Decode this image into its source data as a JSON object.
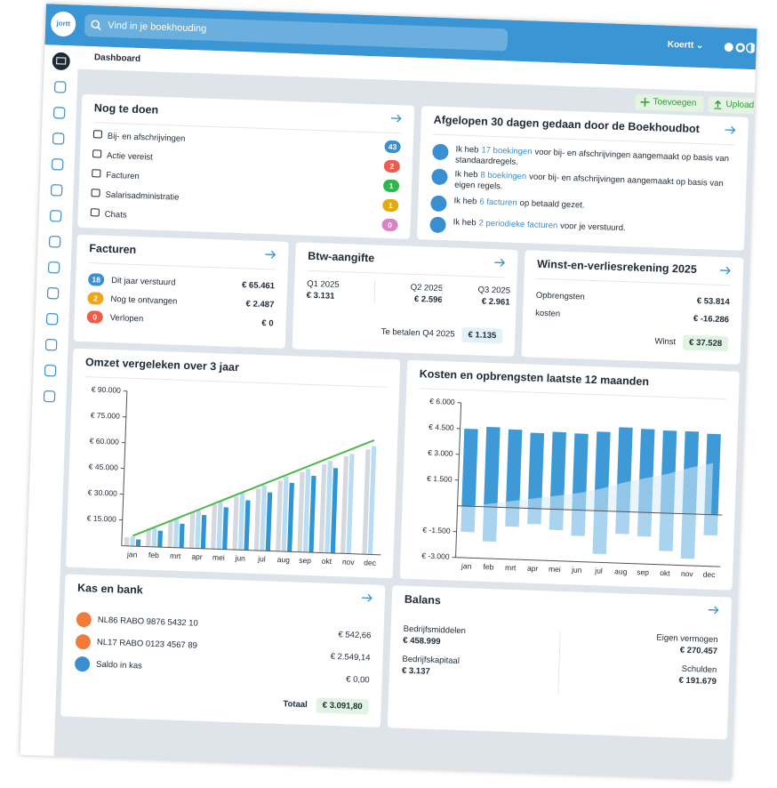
{
  "app": {
    "logo": "jortt",
    "search": "Vind in je boekhouding",
    "user": "Koertt",
    "breadcrumb": "Dashboard",
    "actions": [
      "Toevoegen",
      "Uploaden"
    ]
  },
  "todo": {
    "title": "Nog te doen",
    "items": [
      {
        "label": "Bij- en afschrijvingen",
        "count": 43,
        "color": "#3a8fd0"
      },
      {
        "label": "Actie vereist",
        "count": 2,
        "color": "#ef5b4c"
      },
      {
        "label": "Facturen",
        "count": 1,
        "color": "#2db84b"
      },
      {
        "label": "Salarisadministratie",
        "count": 1,
        "color": "#e2a910"
      },
      {
        "label": "Chats",
        "count": 0,
        "color": "#d883c8"
      }
    ]
  },
  "bot": {
    "title": "Afgelopen 30 dagen gedaan door de Boekhoudbot",
    "items": [
      {
        "before": "Ik heb",
        "link": "17 boekingen",
        "after": "voor bij- en afschrijvingen aangemaakt op basis van standaardregels."
      },
      {
        "before": "Ik heb",
        "link": "8 boekingen",
        "after": "voor bij- en afschrijvingen aangemaakt op basis van eigen regels."
      },
      {
        "before": "Ik heb",
        "link": "6 facturen",
        "after": "op betaald gezet."
      },
      {
        "before": "Ik heb",
        "link": "2 periodieke facturen",
        "after": "voor je verstuurd."
      }
    ]
  },
  "invoices": {
    "title": "Facturen",
    "rows": [
      {
        "count": 18,
        "label": "Dit jaar verstuurd",
        "amount": "€ 65.461",
        "color": "#3a8fd0"
      },
      {
        "count": 2,
        "label": "Nog te ontvangen",
        "amount": "€ 2.487",
        "color": "#f2a516"
      },
      {
        "count": 0,
        "label": "Verlopen",
        "amount": "€ 0",
        "color": "#ef5b4c"
      }
    ]
  },
  "btw": {
    "title": "Btw-aangifte",
    "quarters": [
      {
        "label": "Q1 2025",
        "amount": "€ 3.131"
      },
      {
        "label": "Q2 2025",
        "amount": "€ 2.596"
      },
      {
        "label": "Q3 2025",
        "amount": "€ 2.961"
      }
    ],
    "due_label": "Te betalen Q4 2025",
    "due": "€ 1.135"
  },
  "pnl": {
    "title": "Winst-en-verliesrekening 2025",
    "rows": [
      {
        "label": "Opbrengsten",
        "amount": "€ 53.814"
      },
      {
        "label": "kosten",
        "amount": "€ -16.286"
      }
    ],
    "result_label": "Winst",
    "result": "€ 37.528"
  },
  "chart_data": [
    {
      "type": "bar",
      "barmode": "group",
      "title": "Omzet vergeleken over 3 jaar",
      "categories": [
        "jan",
        "feb",
        "mrt",
        "apr",
        "mei",
        "jun",
        "jul",
        "aug",
        "sep",
        "okt",
        "nov",
        "dec"
      ],
      "series": [
        {
          "color": "#d3d9df",
          "values": [
            5000,
            10500,
            15500,
            21000,
            26000,
            31000,
            36000,
            41000,
            46500,
            51500,
            56500,
            61000
          ]
        },
        {
          "color": "#b8dcf1",
          "values": [
            5500,
            11000,
            17000,
            22500,
            28000,
            33000,
            38000,
            43500,
            48500,
            53500,
            58000,
            63000
          ]
        },
        {
          "color": "#2f95d3",
          "values": [
            4000,
            9500,
            14000,
            19500,
            24500,
            29000,
            34000,
            40000,
            44500,
            49500,
            null,
            null
          ]
        },
        {
          "type": "line",
          "color": "#4cb84a",
          "values": [
            6000,
            11500,
            17000,
            22500,
            28000,
            33500,
            39000,
            44500,
            50000,
            55500,
            61000,
            66500
          ]
        }
      ],
      "ylim": [
        0,
        90000
      ],
      "yticks": [
        {
          "value": 15000,
          "label": "€ 15.000"
        },
        {
          "value": 30000,
          "label": "€ 30.000"
        },
        {
          "value": 45000,
          "label": "€ 45.000"
        },
        {
          "value": 60000,
          "label": "€ 60.000"
        },
        {
          "value": 75000,
          "label": "€ 75.000"
        },
        {
          "value": 90000,
          "label": "€ 90.000"
        }
      ]
    },
    {
      "type": "bar",
      "barmode": "overlay",
      "title": "Kosten en opbrengsten laatste 12 maanden",
      "categories": [
        "jan",
        "feb",
        "mrt",
        "apr",
        "mei",
        "jun",
        "jul",
        "aug",
        "sep",
        "okt",
        "nov",
        "dec"
      ],
      "series": [
        {
          "color": "#3d9ad6",
          "values": [
            4500,
            4650,
            4550,
            4400,
            4500,
            4450,
            4600,
            4900,
            4850,
            4800,
            4800,
            4700
          ]
        },
        {
          "color": "#a9d3ef",
          "values": [
            -1500,
            -2000,
            -1100,
            -900,
            -1200,
            -1500,
            -2500,
            -1300,
            -1400,
            -2200,
            -2600,
            -1200
          ]
        },
        {
          "type": "area",
          "color": "#d7ebf8",
          "values": [
            0,
            200,
            400,
            600,
            800,
            1000,
            1300,
            1700,
            2000,
            2300,
            2700,
            3000
          ]
        }
      ],
      "ylim": [
        -3000,
        6000
      ],
      "yticks": [
        {
          "value": -3000,
          "label": "€ -3.000"
        },
        {
          "value": -1500,
          "label": "€ -1.500"
        },
        {
          "value": 1500,
          "label": "€ 1.500"
        },
        {
          "value": 3000,
          "label": "€ 3.000"
        },
        {
          "value": 4500,
          "label": "€ 4.500"
        },
        {
          "value": 6000,
          "label": "€ 6.000"
        }
      ]
    }
  ],
  "cash": {
    "title": "Kas en bank",
    "rows": [
      {
        "label": "NL86 RABO 9876 5432 10",
        "amount": "€ 542,66"
      },
      {
        "label": "NL17 RABO 0123 4567 89",
        "amount": "€ 2.549,14"
      },
      {
        "label": "Saldo in kas",
        "amount": "€ 0,00"
      }
    ],
    "total_label": "Totaal",
    "total": "€ 3.091,80"
  },
  "balance": {
    "title": "Balans",
    "left": [
      {
        "label": "Bedrijfsmiddelen",
        "amount": "€ 458.999"
      },
      {
        "label": "Bedrijfskapitaal",
        "amount": "€ 3.137"
      }
    ],
    "right": [
      {
        "label": "Eigen vermogen",
        "amount": "€ 270.457"
      },
      {
        "label": "Schulden",
        "amount": "€ 191.679"
      }
    ]
  }
}
